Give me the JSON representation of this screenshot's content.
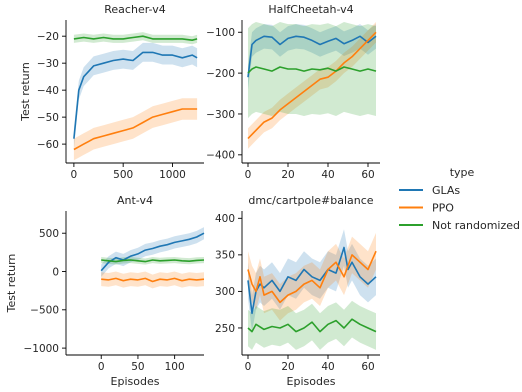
{
  "colors": {
    "GLAs": "#1f77b4",
    "PPO": "#ff7f0e",
    "Not randomized": "#2ca02c"
  },
  "legend": {
    "title": "type",
    "entries": [
      "GLAs",
      "PPO",
      "Not randomized"
    ],
    "placement": "right"
  },
  "chart_data": [
    {
      "type": "line",
      "title": "Reacher-v4",
      "xlabel": "",
      "ylabel": "Test return",
      "xlim": [
        -80,
        1320
      ],
      "ylim": [
        -67,
        -14
      ],
      "xticks": [
        0,
        500,
        1000
      ],
      "yticks": [
        -60,
        -50,
        -40,
        -30,
        -20
      ],
      "series": [
        {
          "name": "GLAs",
          "x": [
            0,
            50,
            100,
            150,
            200,
            300,
            400,
            500,
            600,
            700,
            800,
            900,
            1000,
            1100,
            1200,
            1250
          ],
          "y": [
            -58,
            -40,
            -35,
            -33,
            -31,
            -30,
            -29,
            -28.5,
            -29,
            -26,
            -26,
            -27,
            -27,
            -28,
            -27,
            -28
          ],
          "band": 3.5
        },
        {
          "name": "PPO",
          "x": [
            0,
            50,
            100,
            150,
            200,
            300,
            400,
            500,
            600,
            700,
            800,
            900,
            1000,
            1100,
            1200,
            1250
          ],
          "y": [
            -62,
            -61,
            -60,
            -59,
            -58,
            -57,
            -56,
            -55,
            -54,
            -52,
            -50,
            -49,
            -48,
            -47,
            -47,
            -47
          ],
          "band": 4
        },
        {
          "name": "Not randomized",
          "x": [
            0,
            100,
            200,
            300,
            400,
            500,
            600,
            700,
            800,
            900,
            1000,
            1100,
            1200,
            1250
          ],
          "y": [
            -21,
            -20.5,
            -21,
            -20.5,
            -21,
            -21,
            -20.5,
            -20,
            -21,
            -21,
            -21,
            -21,
            -21.5,
            -21
          ],
          "band": 1.5
        }
      ]
    },
    {
      "type": "line",
      "title": "HalfCheetah-v4",
      "xlabel": "",
      "ylabel": "",
      "xlim": [
        -3,
        66
      ],
      "ylim": [
        -420,
        -70
      ],
      "xticks": [
        0,
        20,
        40,
        60
      ],
      "yticks": [
        -400,
        -300,
        -200,
        -100
      ],
      "series": [
        {
          "name": "GLAs",
          "x": [
            0,
            2,
            4,
            8,
            12,
            16,
            20,
            24,
            28,
            32,
            36,
            40,
            44,
            48,
            52,
            56,
            60,
            64
          ],
          "y": [
            -210,
            -130,
            -120,
            -110,
            -112,
            -130,
            -115,
            -110,
            -112,
            -120,
            -130,
            -122,
            -115,
            -128,
            -120,
            -110,
            -125,
            -110
          ],
          "band": 30
        },
        {
          "name": "PPO",
          "x": [
            0,
            4,
            8,
            12,
            16,
            20,
            24,
            28,
            32,
            36,
            40,
            44,
            48,
            52,
            56,
            60,
            64
          ],
          "y": [
            -360,
            -340,
            -320,
            -310,
            -290,
            -275,
            -260,
            -245,
            -230,
            -215,
            -210,
            -195,
            -175,
            -160,
            -140,
            -120,
            -100
          ],
          "band": 25
        },
        {
          "name": "Not randomized",
          "x": [
            0,
            2,
            4,
            8,
            12,
            16,
            20,
            24,
            28,
            32,
            36,
            40,
            44,
            48,
            52,
            56,
            60,
            64
          ],
          "y": [
            -200,
            -190,
            -185,
            -190,
            -195,
            -185,
            -190,
            -190,
            -195,
            -190,
            -192,
            -188,
            -195,
            -185,
            -190,
            -195,
            -190,
            -195
          ],
          "band": 110
        }
      ]
    },
    {
      "type": "line",
      "title": "Ant-v4",
      "xlabel": "Episodes",
      "ylabel": "Test return",
      "xlim": [
        -48,
        140
      ],
      "ylim": [
        -1090,
        790
      ],
      "xticks": [
        0,
        50,
        100
      ],
      "yticks": [
        -1000,
        -500,
        0,
        500
      ],
      "series": [
        {
          "name": "GLAs",
          "x": [
            0,
            10,
            20,
            30,
            40,
            50,
            60,
            70,
            80,
            90,
            100,
            110,
            120,
            130,
            140
          ],
          "y": [
            10,
            120,
            180,
            150,
            200,
            230,
            280,
            300,
            330,
            350,
            380,
            400,
            420,
            450,
            500
          ],
          "band": 80
        },
        {
          "name": "PPO",
          "x": [
            0,
            10,
            20,
            30,
            40,
            50,
            60,
            70,
            80,
            90,
            100,
            110,
            120,
            130,
            140
          ],
          "y": [
            -100,
            -110,
            -90,
            -120,
            -100,
            -110,
            -90,
            -130,
            -100,
            -110,
            -90,
            -120,
            -100,
            -110,
            -100
          ],
          "band": 90
        },
        {
          "name": "Not randomized",
          "x": [
            0,
            10,
            20,
            30,
            40,
            50,
            60,
            70,
            80,
            90,
            100,
            110,
            120,
            130,
            140
          ],
          "y": [
            150,
            140,
            130,
            145,
            150,
            140,
            130,
            150,
            140,
            145,
            150,
            140,
            135,
            145,
            150
          ],
          "band": 40
        }
      ]
    },
    {
      "type": "line",
      "title": "dmc/cartpole#balance",
      "xlabel": "Episodes",
      "ylabel": "",
      "xlim": [
        -3,
        66
      ],
      "ylim": [
        213,
        410
      ],
      "xticks": [
        0,
        20,
        40,
        60
      ],
      "yticks": [
        250,
        300,
        350,
        400
      ],
      "series": [
        {
          "name": "GLAs",
          "x": [
            0,
            2,
            4,
            6,
            8,
            12,
            16,
            20,
            24,
            28,
            32,
            36,
            40,
            44,
            48,
            50,
            52,
            56,
            60,
            64
          ],
          "y": [
            315,
            270,
            300,
            310,
            305,
            315,
            300,
            320,
            315,
            330,
            320,
            315,
            330,
            325,
            360,
            330,
            340,
            320,
            310,
            320
          ],
          "band": 25
        },
        {
          "name": "PPO",
          "x": [
            0,
            2,
            4,
            6,
            8,
            12,
            16,
            20,
            24,
            28,
            32,
            36,
            40,
            44,
            48,
            52,
            56,
            60,
            64
          ],
          "y": [
            330,
            310,
            300,
            320,
            295,
            300,
            285,
            295,
            300,
            310,
            315,
            305,
            330,
            340,
            320,
            350,
            340,
            330,
            355
          ],
          "band": 25
        },
        {
          "name": "Not randomized",
          "x": [
            0,
            2,
            4,
            8,
            12,
            16,
            20,
            24,
            28,
            32,
            36,
            40,
            44,
            48,
            52,
            56,
            60,
            64
          ],
          "y": [
            250,
            245,
            255,
            248,
            252,
            250,
            255,
            245,
            250,
            258,
            245,
            255,
            260,
            250,
            262,
            255,
            250,
            245
          ],
          "band": 25
        }
      ]
    }
  ]
}
